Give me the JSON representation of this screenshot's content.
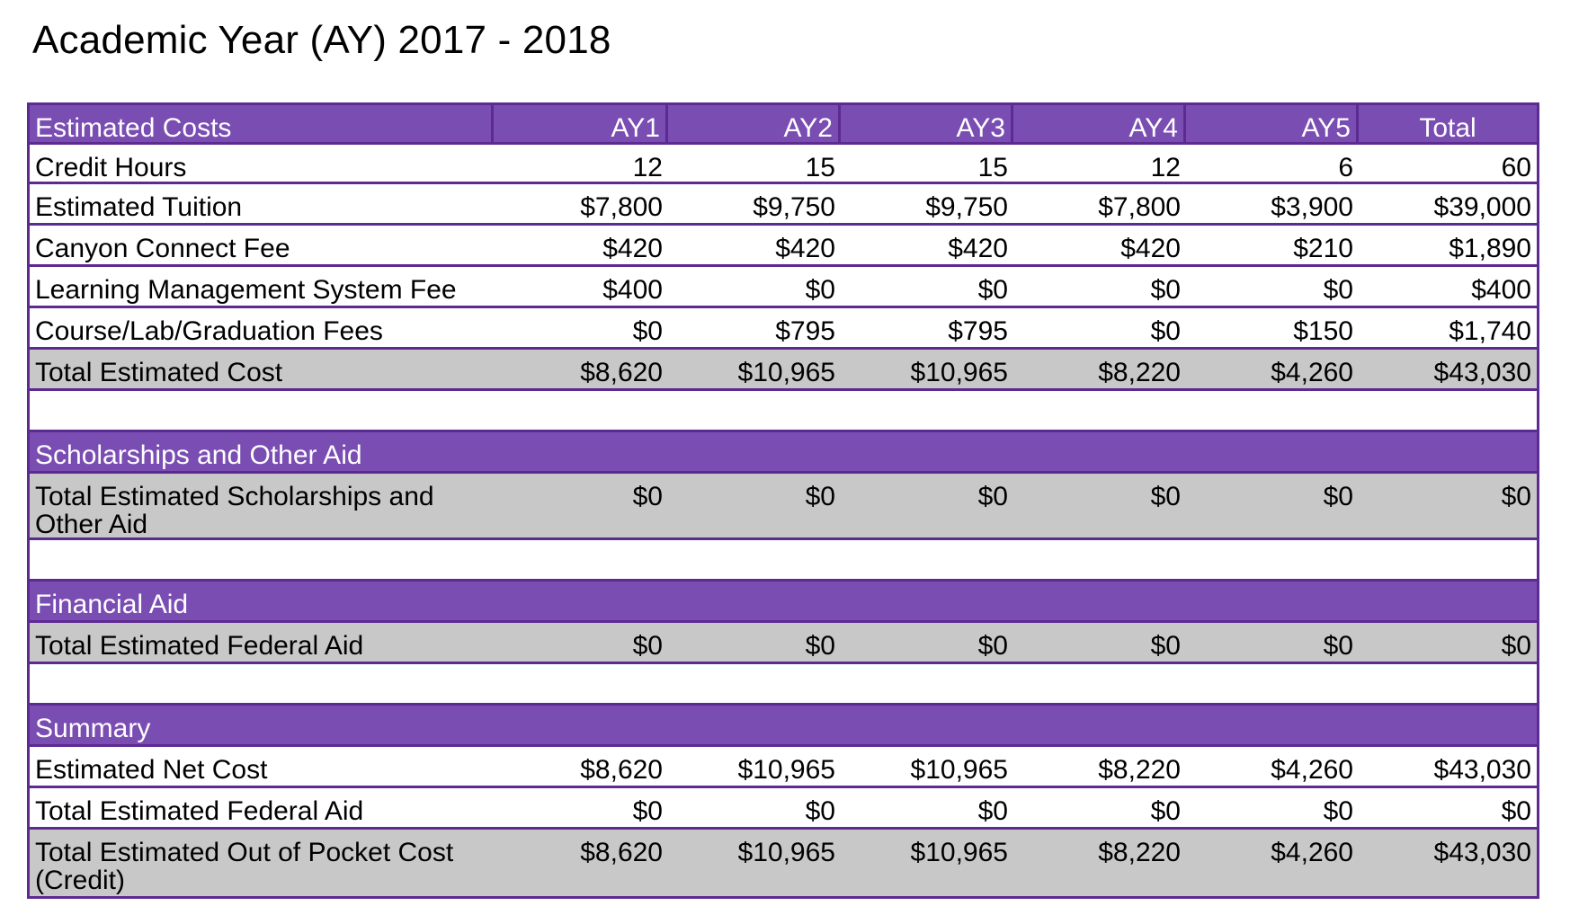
{
  "page": {
    "title": "Academic Year (AY) 2017 - 2018"
  },
  "table": {
    "header": [
      "Estimated Costs",
      "AY1",
      "AY2",
      "AY3",
      "AY4",
      "AY5",
      "Total"
    ],
    "costs": [
      {
        "label": "Credit Hours",
        "values": [
          "12",
          "15",
          "15",
          "12",
          "6",
          "60"
        ]
      },
      {
        "label": "Estimated Tuition",
        "values": [
          "$7,800",
          "$9,750",
          "$9,750",
          "$7,800",
          "$3,900",
          "$39,000"
        ]
      },
      {
        "label": "Canyon Connect Fee",
        "values": [
          "$420",
          "$420",
          "$420",
          "$420",
          "$210",
          "$1,890"
        ]
      },
      {
        "label": "Learning Management System Fee",
        "values": [
          "$400",
          "$0",
          "$0",
          "$0",
          "$0",
          "$400"
        ]
      },
      {
        "label": "Course/Lab/Graduation Fees",
        "values": [
          "$0",
          "$795",
          "$795",
          "$0",
          "$150",
          "$1,740"
        ]
      }
    ],
    "total_cost": {
      "label": "Total Estimated Cost",
      "values": [
        "$8,620",
        "$10,965",
        "$10,965",
        "$8,220",
        "$4,260",
        "$43,030"
      ]
    },
    "scholarships": {
      "section_label": "Scholarships and Other Aid",
      "total": {
        "label": "Total Estimated Scholarships and Other Aid",
        "values": [
          "$0",
          "$0",
          "$0",
          "$0",
          "$0",
          "$0"
        ]
      }
    },
    "financial_aid": {
      "section_label": "Financial Aid",
      "total": {
        "label": "Total Estimated Federal Aid",
        "values": [
          "$0",
          "$0",
          "$0",
          "$0",
          "$0",
          "$0"
        ]
      }
    },
    "summary": {
      "section_label": "Summary",
      "net_cost": {
        "label": "Estimated Net Cost",
        "values": [
          "$8,620",
          "$10,965",
          "$10,965",
          "$8,220",
          "$4,260",
          "$43,030"
        ]
      },
      "federal_aid": {
        "label": "Total Estimated Federal Aid",
        "values": [
          "$0",
          "$0",
          "$0",
          "$0",
          "$0",
          "$0"
        ]
      },
      "out_of_pocket": {
        "label": "Total Estimated Out of Pocket Cost (Credit)",
        "values": [
          "$8,620",
          "$10,965",
          "$10,965",
          "$8,220",
          "$4,260",
          "$43,030"
        ]
      }
    }
  },
  "colors": {
    "header_purple": "#7a4db3",
    "border_purple": "#5d2a92",
    "total_gray": "#c8c8c8"
  }
}
